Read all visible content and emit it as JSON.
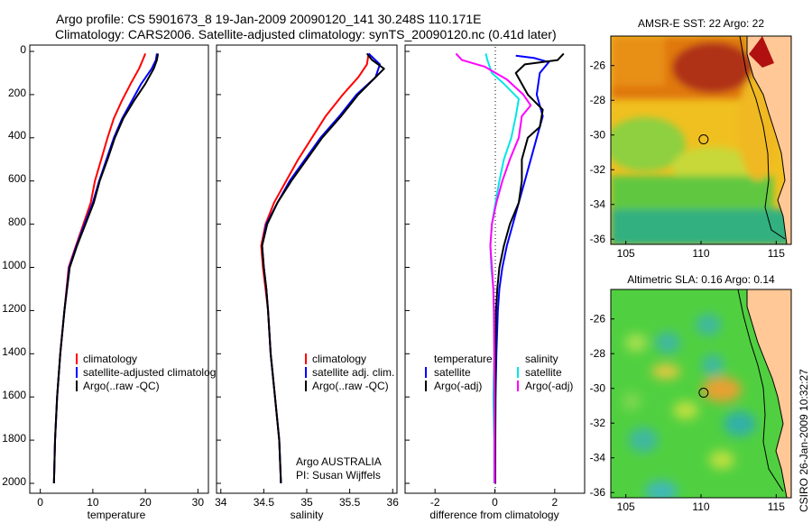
{
  "header": {
    "line1": "Argo profile: CS 5901673_8 19-Jan-2009 20090120_141 30.248S 110.171E",
    "line2": "Climatology: CARS2006. Satellite-adjusted climatology: synTS_20090120.nc (0.41d later)"
  },
  "depth_ticks": [
    "0",
    "200",
    "400",
    "600",
    "800",
    "1000",
    "1200",
    "1400",
    "1600",
    "1800",
    "2000"
  ],
  "footer": "CSIRO 26-Jan-2009 10:32:27",
  "colors": {
    "climatology": "#ff0000",
    "satellite": "#0000ff",
    "argo": "#000000",
    "magenta": "#ff00ff",
    "cyan": "#00e6e6"
  },
  "chart_data": [
    {
      "type": "line",
      "xlabel": "temperature",
      "xticks": [
        "0",
        "10",
        "20",
        "30"
      ],
      "xlim": [
        -2,
        32
      ],
      "ylim": [
        0,
        2050
      ],
      "legend": [
        "climatology",
        "satellite-adjusted climatology",
        "Argo(..raw -QC)"
      ],
      "series": [
        {
          "name": "climatology",
          "color": "#ff0000",
          "points": [
            [
              20,
              10
            ],
            [
              19.5,
              40
            ],
            [
              18.8,
              80
            ],
            [
              17.2,
              150
            ],
            [
              15.5,
              230
            ],
            [
              14,
              310
            ],
            [
              12.8,
              400
            ],
            [
              11.6,
              500
            ],
            [
              10.4,
              600
            ],
            [
              9.6,
              700
            ],
            [
              8.2,
              800
            ],
            [
              6.8,
              900
            ],
            [
              5.4,
              1000
            ],
            [
              4.6,
              1200
            ],
            [
              3.8,
              1400
            ],
            [
              3.2,
              1600
            ],
            [
              2.8,
              1800
            ],
            [
              2.6,
              2000
            ]
          ]
        },
        {
          "name": "satellite-adjusted climatology",
          "color": "#0000ff",
          "points": [
            [
              22.2,
              10
            ],
            [
              22,
              40
            ],
            [
              21.2,
              80
            ],
            [
              19.2,
              150
            ],
            [
              17.4,
              230
            ],
            [
              15.6,
              310
            ],
            [
              14,
              400
            ],
            [
              12.6,
              500
            ],
            [
              11.2,
              600
            ],
            [
              10,
              700
            ],
            [
              8.4,
              800
            ],
            [
              6.9,
              900
            ],
            [
              5.5,
              1000
            ],
            [
              4.6,
              1200
            ],
            [
              3.8,
              1400
            ],
            [
              3.2,
              1600
            ],
            [
              2.8,
              1800
            ],
            [
              2.6,
              2000
            ]
          ]
        },
        {
          "name": "Argo(..raw -QC)",
          "color": "#000000",
          "points": [
            [
              22.4,
              10
            ],
            [
              22.2,
              40
            ],
            [
              21.6,
              80
            ],
            [
              20,
              150
            ],
            [
              17.8,
              230
            ],
            [
              15.8,
              310
            ],
            [
              14.2,
              400
            ],
            [
              12.8,
              500
            ],
            [
              11.3,
              600
            ],
            [
              10.2,
              700
            ],
            [
              8.6,
              800
            ],
            [
              7,
              900
            ],
            [
              5.6,
              1000
            ],
            [
              4.6,
              1200
            ],
            [
              3.8,
              1400
            ],
            [
              3.2,
              1600
            ],
            [
              2.8,
              1800
            ],
            [
              2.6,
              2000
            ]
          ]
        }
      ]
    },
    {
      "type": "line",
      "xlabel": "salinity",
      "xticks": [
        "34",
        "34.5",
        "35",
        "35.5",
        "36"
      ],
      "xlim": [
        33.95,
        36.05
      ],
      "ylim": [
        0,
        2050
      ],
      "legend": [
        "climatology",
        "satellite adj. clim.",
        "Argo(..raw -QC)"
      ],
      "annotation": [
        "Argo AUSTRALIA",
        "PI: Susan Wijffels"
      ],
      "series": [
        {
          "name": "climatology",
          "color": "#ff0000",
          "points": [
            [
              35.72,
              10
            ],
            [
              35.7,
              60
            ],
            [
              35.6,
              120
            ],
            [
              35.42,
              200
            ],
            [
              35.22,
              300
            ],
            [
              35.06,
              400
            ],
            [
              34.9,
              500
            ],
            [
              34.76,
              600
            ],
            [
              34.62,
              700
            ],
            [
              34.52,
              800
            ],
            [
              34.47,
              900
            ],
            [
              34.49,
              1000
            ],
            [
              34.52,
              1100
            ],
            [
              34.55,
              1200
            ],
            [
              34.58,
              1400
            ],
            [
              34.63,
              1600
            ],
            [
              34.68,
              1800
            ],
            [
              34.7,
              2000
            ]
          ]
        },
        {
          "name": "satellite adj. clim.",
          "color": "#0000ff",
          "points": [
            [
              35.72,
              10
            ],
            [
              35.85,
              60
            ],
            [
              35.8,
              120
            ],
            [
              35.58,
              200
            ],
            [
              35.38,
              300
            ],
            [
              35.16,
              400
            ],
            [
              34.98,
              500
            ],
            [
              34.8,
              600
            ],
            [
              34.66,
              700
            ],
            [
              34.53,
              800
            ],
            [
              34.48,
              900
            ],
            [
              34.5,
              1000
            ],
            [
              34.53,
              1100
            ],
            [
              34.55,
              1200
            ],
            [
              34.58,
              1400
            ],
            [
              34.63,
              1600
            ],
            [
              34.68,
              1800
            ],
            [
              34.7,
              2000
            ]
          ]
        },
        {
          "name": "Argo(..raw -QC)",
          "color": "#000000",
          "points": [
            [
              35.7,
              10
            ],
            [
              35.76,
              40
            ],
            [
              35.9,
              80
            ],
            [
              35.75,
              140
            ],
            [
              35.6,
              200
            ],
            [
              35.4,
              300
            ],
            [
              35.18,
              400
            ],
            [
              35,
              500
            ],
            [
              34.82,
              600
            ],
            [
              34.66,
              700
            ],
            [
              34.54,
              800
            ],
            [
              34.48,
              900
            ],
            [
              34.5,
              1000
            ],
            [
              34.53,
              1100
            ],
            [
              34.55,
              1200
            ],
            [
              34.58,
              1400
            ],
            [
              34.63,
              1600
            ],
            [
              34.68,
              1800
            ],
            [
              34.7,
              2000
            ]
          ]
        }
      ]
    },
    {
      "type": "line",
      "xlabel": "difference from climatology",
      "xticks": [
        "-2",
        "0",
        "2"
      ],
      "xlim": [
        -3,
        3
      ],
      "ylim": [
        0,
        2050
      ],
      "legend_title_temp": "temperature",
      "legend_title_sal": "salinity",
      "legend": [
        "satellite",
        "Argo(-adj)",
        "satellite",
        "Argo(-adj)"
      ],
      "series": [
        {
          "name": "satellite",
          "color": "#0000ff",
          "points": [
            [
              0.7,
              20
            ],
            [
              1.3,
              30
            ],
            [
              1.8,
              50
            ],
            [
              1.5,
              100
            ],
            [
              1.4,
              200
            ],
            [
              1.6,
              300
            ],
            [
              1.4,
              400
            ],
            [
              1.2,
              500
            ],
            [
              1,
              600
            ],
            [
              0.8,
              700
            ],
            [
              0.6,
              800
            ],
            [
              0.4,
              900
            ],
            [
              0.25,
              1000
            ],
            [
              0.15,
              1100
            ],
            [
              0.1,
              1200
            ],
            [
              0.05,
              1400
            ],
            [
              0.02,
              1600
            ],
            [
              0.01,
              2000
            ]
          ]
        },
        {
          "name": "Argo(-adj)",
          "color": "#000000",
          "points": [
            [
              2.3,
              10
            ],
            [
              2.1,
              40
            ],
            [
              1,
              60
            ],
            [
              0.7,
              100
            ],
            [
              1.1,
              200
            ],
            [
              1.6,
              270
            ],
            [
              1.5,
              350
            ],
            [
              1.1,
              400
            ],
            [
              0.9,
              500
            ],
            [
              0.9,
              600
            ],
            [
              0.8,
              700
            ],
            [
              0.5,
              800
            ],
            [
              0.3,
              900
            ],
            [
              0.15,
              1000
            ],
            [
              0.08,
              1100
            ],
            [
              0.04,
              1200
            ],
            [
              0.02,
              1500
            ],
            [
              0.01,
              2000
            ]
          ]
        },
        {
          "name": "satellite",
          "color": "#00e6e6",
          "points": [
            [
              -0.3,
              10
            ],
            [
              -0.25,
              40
            ],
            [
              -0.1,
              100
            ],
            [
              0.3,
              150
            ],
            [
              0.8,
              220
            ],
            [
              0.7,
              300
            ],
            [
              0.55,
              400
            ],
            [
              0.3,
              500
            ],
            [
              0.15,
              600
            ],
            [
              0.02,
              700
            ],
            [
              -0.1,
              800
            ],
            [
              -0.15,
              900
            ],
            [
              -0.12,
              1000
            ],
            [
              -0.05,
              1100
            ],
            [
              -0.04,
              1200
            ],
            [
              -0.02,
              1400
            ],
            [
              -0.05,
              1600
            ],
            [
              -0.02,
              1800
            ],
            [
              -0.02,
              2000
            ]
          ]
        },
        {
          "name": "Argo(-adj)",
          "color": "#ff00ff",
          "points": [
            [
              -1.3,
              10
            ],
            [
              -1.1,
              40
            ],
            [
              -0.35,
              70
            ],
            [
              0.4,
              130
            ],
            [
              0.95,
              200
            ],
            [
              1.2,
              250
            ],
            [
              0.9,
              300
            ],
            [
              0.8,
              400
            ],
            [
              0.5,
              500
            ],
            [
              0.25,
              600
            ],
            [
              0.05,
              700
            ],
            [
              -0.1,
              800
            ],
            [
              -0.15,
              900
            ],
            [
              -0.1,
              1000
            ],
            [
              -0.05,
              1100
            ],
            [
              -0.03,
              1200
            ],
            [
              -0.02,
              1400
            ],
            [
              -0.01,
              2000
            ]
          ]
        }
      ]
    },
    {
      "type": "heatmap",
      "title": "AMSR-E SST: 22 Argo: 22",
      "xticks": [
        "105",
        "110",
        "115"
      ],
      "yticks": [
        "-26",
        "-28",
        "-30",
        "-32",
        "-34",
        "-36"
      ],
      "xlim": [
        104,
        116
      ],
      "ylim": [
        -36.3,
        -24.3
      ],
      "marker": [
        110.17,
        -30.25
      ]
    },
    {
      "type": "heatmap",
      "title": "Altimetric SLA: 0.16 Argo: 0.14",
      "xticks": [
        "105",
        "110",
        "115"
      ],
      "yticks": [
        "-26",
        "-28",
        "-30",
        "-32",
        "-34",
        "-36"
      ],
      "xlim": [
        104,
        116
      ],
      "ylim": [
        -36.3,
        -24.3
      ],
      "marker": [
        110.17,
        -30.25
      ]
    }
  ]
}
